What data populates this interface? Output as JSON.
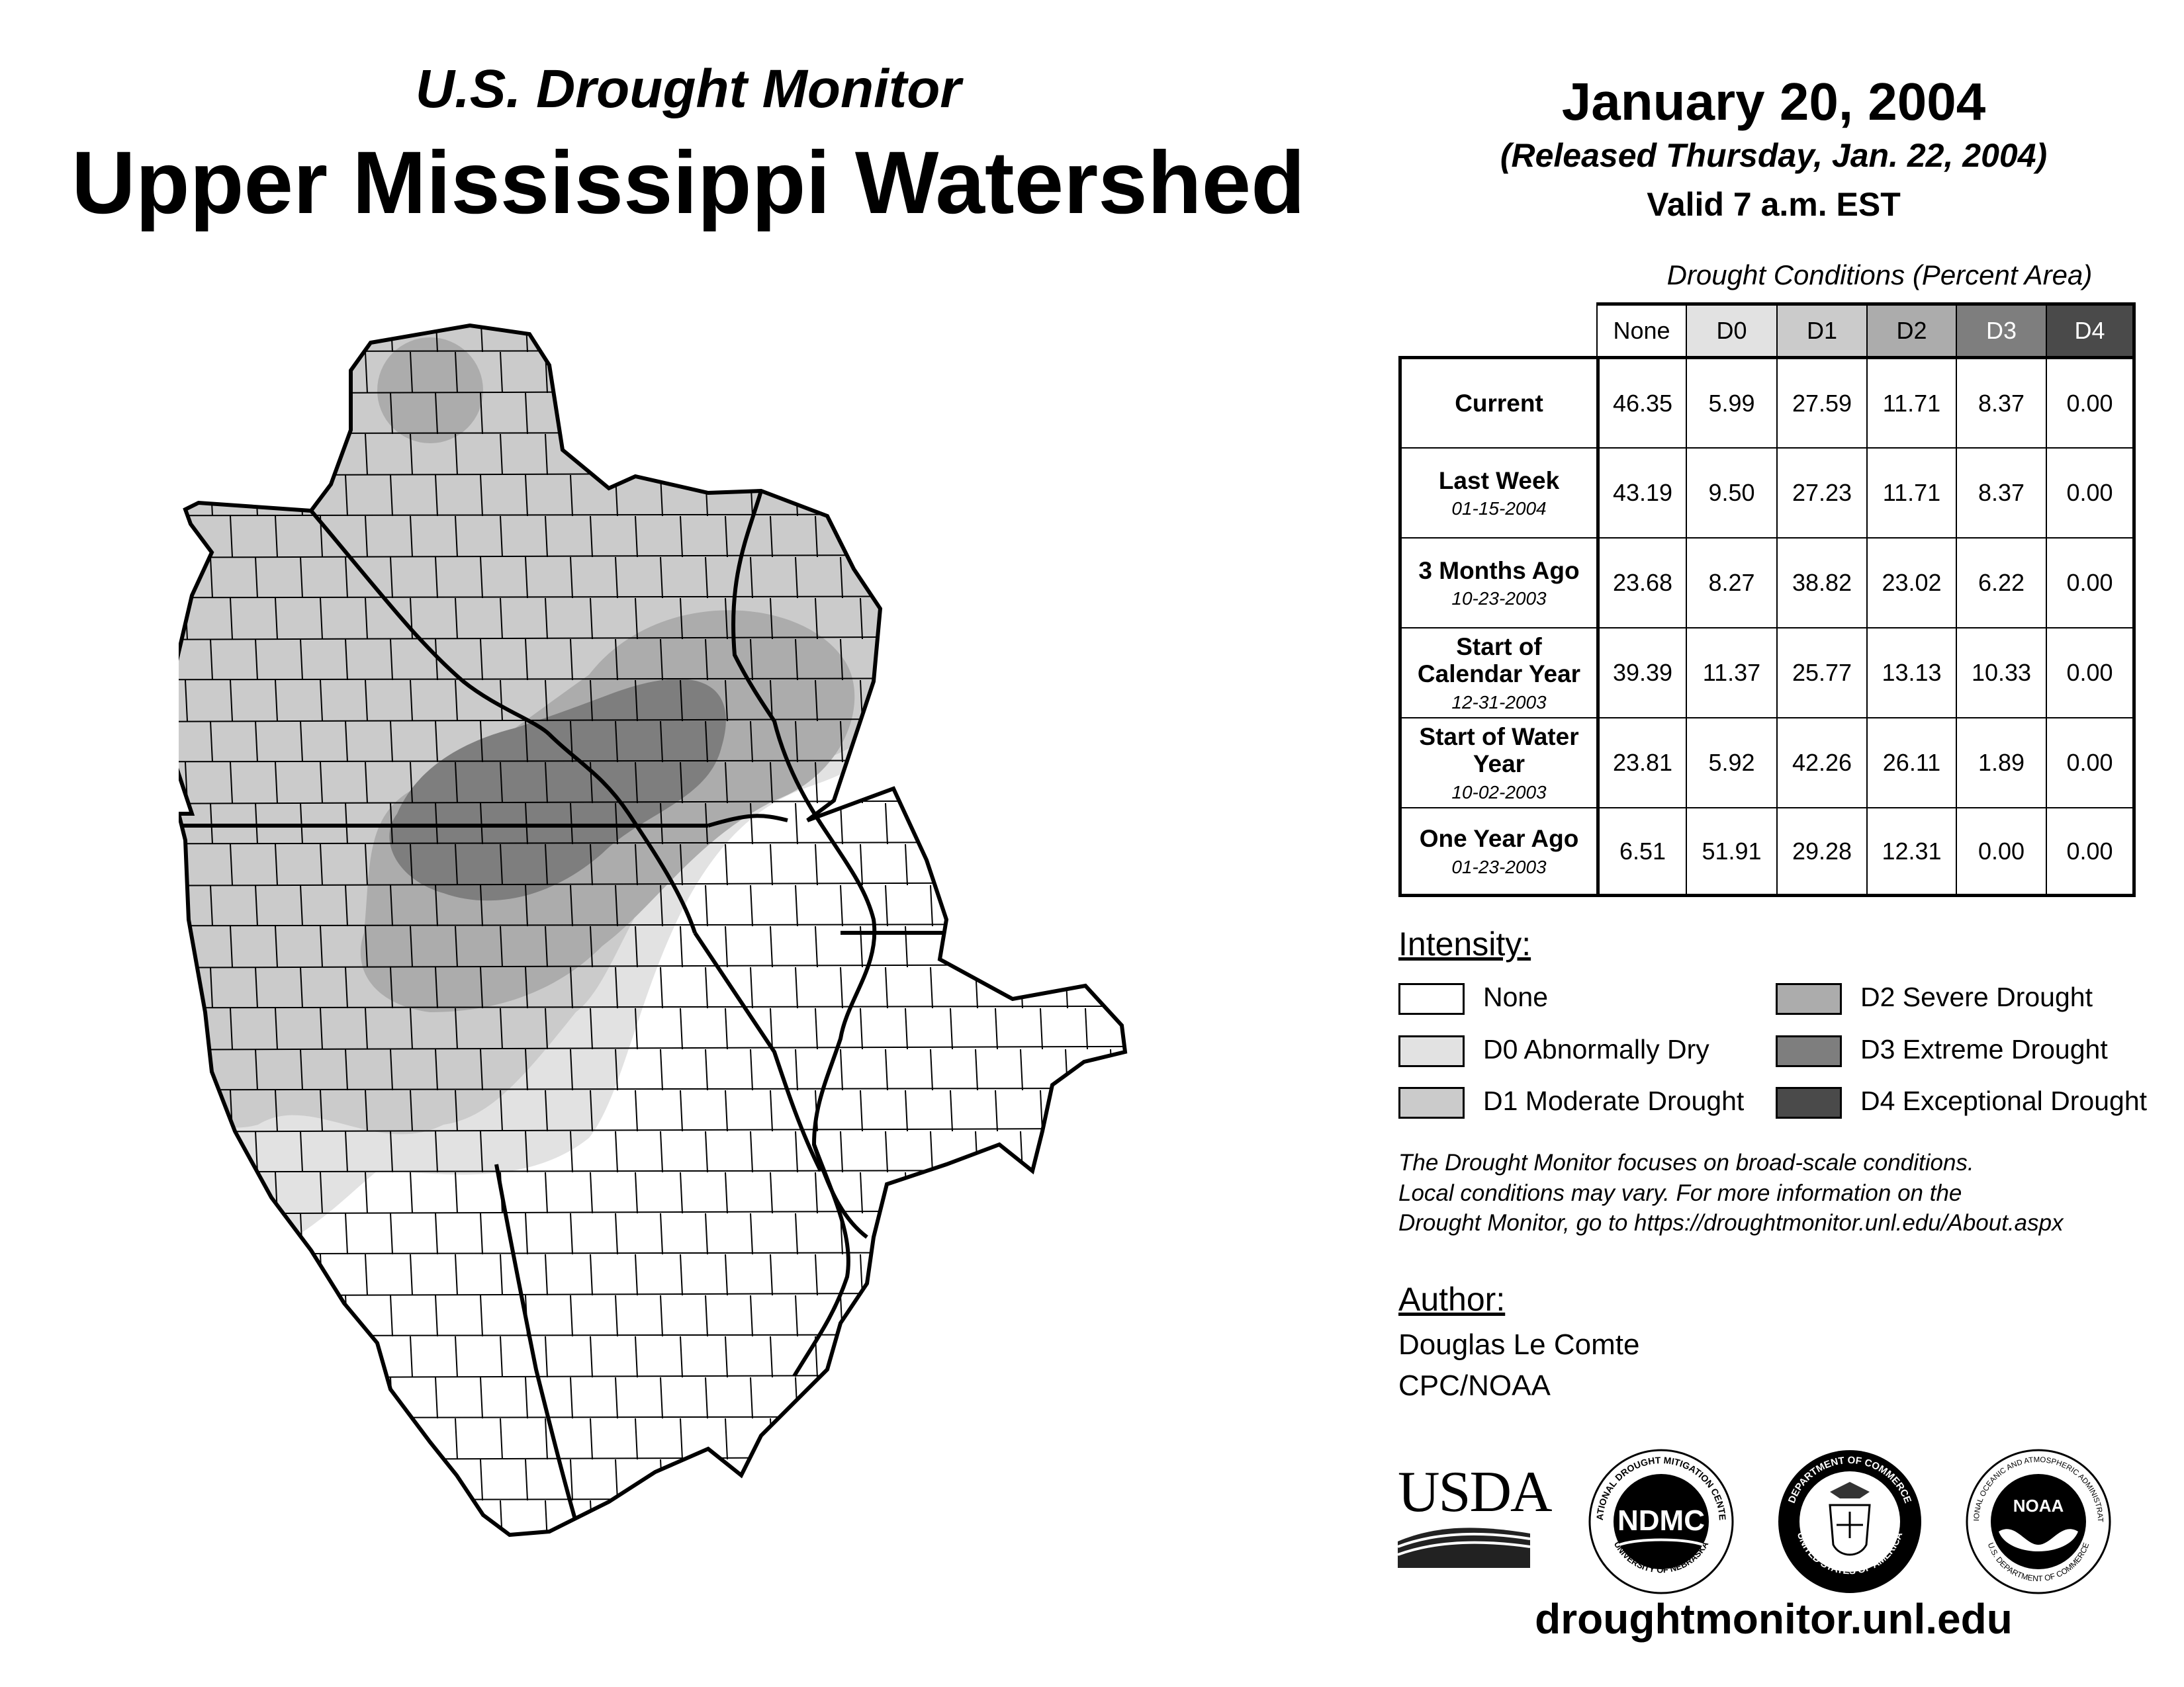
{
  "header": {
    "product": "U.S. Drought Monitor",
    "region": "Upper Mississippi Watershed",
    "date": "January 20, 2004",
    "released": "(Released Thursday, Jan. 22, 2004)",
    "valid": "Valid 7 a.m. EST"
  },
  "table": {
    "title": "Drought Conditions (Percent Area)",
    "columns": [
      "None",
      "D0",
      "D1",
      "D2",
      "D3",
      "D4"
    ],
    "column_colors": [
      "#ffffff",
      "#e2e2e2",
      "#cbcbcb",
      "#acacac",
      "#7e7e7e",
      "#4a4a4a"
    ],
    "rows": [
      {
        "label": "Current",
        "date": "",
        "values": [
          "46.35",
          "5.99",
          "27.59",
          "11.71",
          "8.37",
          "0.00"
        ]
      },
      {
        "label": "Last Week",
        "date": "01-15-2004",
        "values": [
          "43.19",
          "9.50",
          "27.23",
          "11.71",
          "8.37",
          "0.00"
        ]
      },
      {
        "label": "3 Months Ago",
        "date": "10-23-2003",
        "values": [
          "23.68",
          "8.27",
          "38.82",
          "23.02",
          "6.22",
          "0.00"
        ]
      },
      {
        "label": "Start of Calendar Year",
        "date": "12-31-2003",
        "values": [
          "39.39",
          "11.37",
          "25.77",
          "13.13",
          "10.33",
          "0.00"
        ]
      },
      {
        "label": "Start of Water Year",
        "date": "10-02-2003",
        "values": [
          "23.81",
          "5.92",
          "42.26",
          "26.11",
          "1.89",
          "0.00"
        ]
      },
      {
        "label": "One Year Ago",
        "date": "01-23-2003",
        "values": [
          "6.51",
          "51.91",
          "29.28",
          "12.31",
          "0.00",
          "0.00"
        ]
      }
    ]
  },
  "legend": {
    "title": "Intensity:",
    "items": [
      {
        "label": "None",
        "color": "#ffffff"
      },
      {
        "label": "D0 Abnormally Dry",
        "color": "#e2e2e2"
      },
      {
        "label": "D1 Moderate Drought",
        "color": "#cbcbcb"
      },
      {
        "label": "D2 Severe Drought",
        "color": "#acacac"
      },
      {
        "label": "D3 Extreme Drought",
        "color": "#7e7e7e"
      },
      {
        "label": "D4 Exceptional Drought",
        "color": "#4a4a4a"
      }
    ]
  },
  "note": {
    "lines": [
      "The Drought Monitor focuses on broad-scale conditions.",
      "Local conditions may vary. For more information on the",
      "Drought Monitor, go to https://droughtmonitor.unl.edu/About.aspx"
    ]
  },
  "author": {
    "title": "Author:",
    "name": "Douglas Le Comte",
    "org": "CPC/NOAA"
  },
  "logos": {
    "usda": "USDA",
    "ndmc": "NDMC",
    "ndmc_ring": "NATIONAL DROUGHT MITIGATION CENTER",
    "ndmc_ring_bottom": "UNIVERSITY OF NEBRASKA",
    "commerce_ring": "DEPARTMENT OF COMMERCE",
    "commerce_ring_bottom": "UNITED STATES OF AMERICA",
    "noaa": "NOAA",
    "noaa_ring": "NATIONAL OCEANIC AND ATMOSPHERIC ADMINISTRATION",
    "noaa_ring_bottom": "U.S. DEPARTMENT OF COMMERCE"
  },
  "site": "droughtmonitor.unl.edu"
}
